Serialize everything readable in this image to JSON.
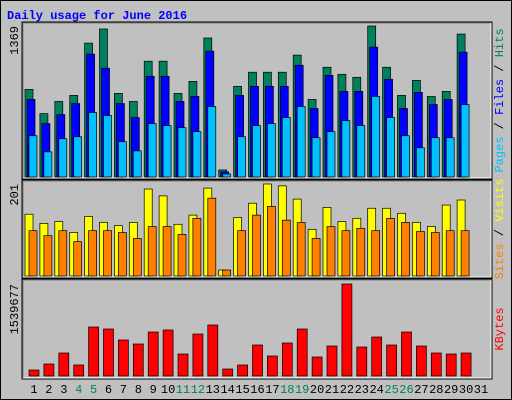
{
  "title": "Daily usage for June 2016",
  "separator": "/",
  "chart_data": [
    {
      "type": "bar",
      "ylim": [
        0,
        1369
      ],
      "yticks": [
        1369
      ],
      "series": [
        {
          "name": "Hits",
          "color": "#00805c",
          "values": [
            794,
            575,
            685,
            740,
            1214,
            1342,
            758,
            685,
            1050,
            1050,
            758,
            867,
            1260,
            64,
            822,
            950,
            950,
            950,
            1105,
            703,
            995,
            931,
            904,
            1369,
            995,
            740,
            876,
            730,
            776,
            1296,
            null
          ]
        },
        {
          "name": "Files",
          "color": "#0000ff",
          "values": [
            703,
            484,
            566,
            666,
            1114,
            986,
            666,
            539,
            913,
            913,
            685,
            730,
            1141,
            46,
            740,
            822,
            822,
            822,
            1013,
            621,
            922,
            776,
            776,
            1178,
            886,
            621,
            767,
            657,
            703,
            1132,
            null
          ]
        },
        {
          "name": "Pages",
          "color": "#00c0ff",
          "values": [
            374,
            228,
            347,
            365,
            584,
            557,
            320,
            237,
            484,
            466,
            447,
            411,
            639,
            27,
            365,
            466,
            484,
            539,
            639,
            356,
            411,
            511,
            466,
            730,
            539,
            374,
            265,
            356,
            356,
            657,
            null
          ]
        }
      ]
    },
    {
      "type": "bar",
      "ylim": [
        0,
        201
      ],
      "yticks": [
        201
      ],
      "series": [
        {
          "name": "Visits",
          "color": "#ffff00",
          "values": [
            135,
            115,
            119,
            95,
            130,
            117,
            110,
            117,
            190,
            175,
            113,
            133,
            192,
            13,
            128,
            159,
            201,
            197,
            168,
            102,
            150,
            119,
            126,
            148,
            148,
            137,
            117,
            108,
            155,
            166,
            null
          ]
        },
        {
          "name": "Sites",
          "color": "#ff8000",
          "values": [
            99,
            88,
            99,
            75,
            99,
            99,
            95,
            82,
            108,
            108,
            91,
            126,
            170,
            13,
            99,
            133,
            152,
            122,
            117,
            82,
            108,
            99,
            104,
            99,
            126,
            117,
            97,
            95,
            99,
            99,
            null
          ]
        }
      ]
    },
    {
      "type": "bar",
      "ylim": [
        0,
        1539677
      ],
      "yticks": [
        1539677
      ],
      "categories": [
        "1",
        "2",
        "3",
        "4",
        "5",
        "6",
        "7",
        "8",
        "9",
        "10",
        "11",
        "12",
        "13",
        "14",
        "15",
        "16",
        "17",
        "18",
        "19",
        "20",
        "21",
        "22",
        "23",
        "24",
        "25",
        "26",
        "27",
        "28",
        "29",
        "30",
        "31"
      ],
      "highlight_categories": [
        3,
        4,
        10,
        11,
        17,
        18,
        24,
        25
      ],
      "highlight_color": "#00805c",
      "series": [
        {
          "name": "KBytes",
          "color": "#ff0000",
          "values": [
            100420,
            200835,
            384930,
            184100,
            820070,
            786600,
            602500,
            535550,
            736380,
            769860,
            368190,
            702910,
            853540,
            117150,
            184100,
            518810,
            334720,
            552290,
            786600,
            317980,
            502080,
            1539677,
            485340,
            652700,
            518810,
            736380,
            502080,
            384930,
            368190,
            384930,
            null
          ]
        }
      ]
    }
  ]
}
